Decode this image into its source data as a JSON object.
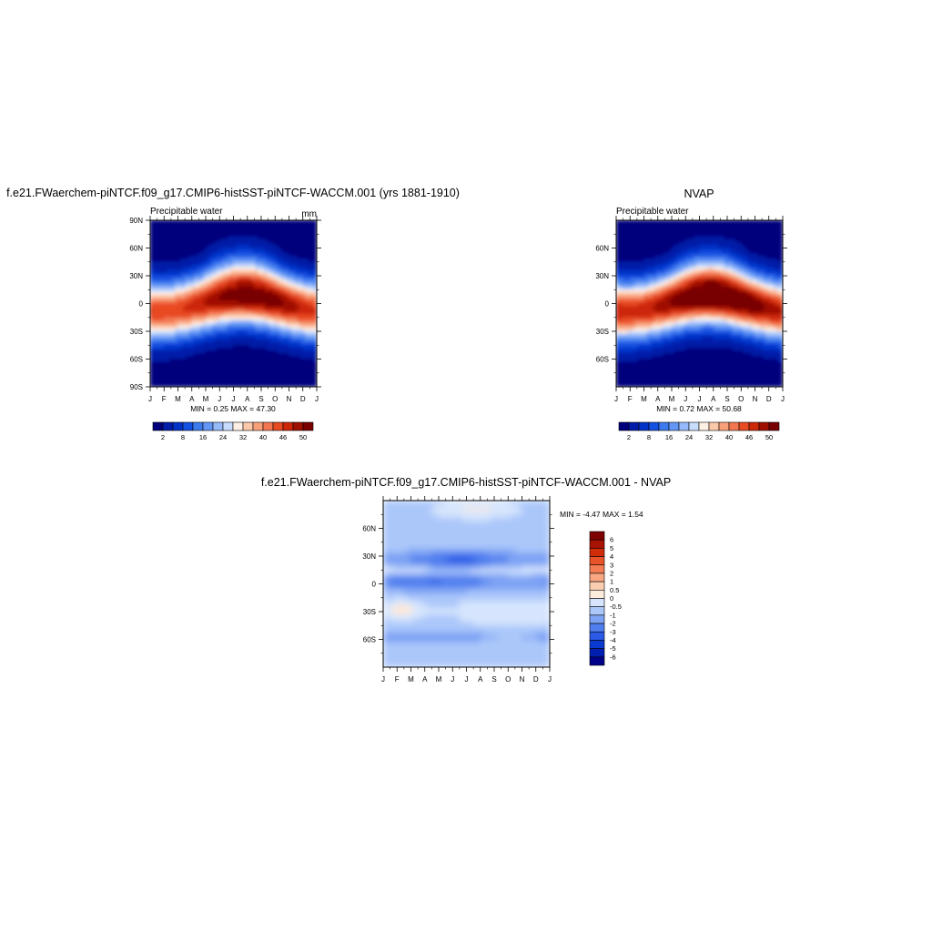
{
  "chart_data": [
    {
      "type": "heatmap",
      "title": "f.e21.FWaerchem-piNTCF.f09_g17.CMIP6-histSST-piNTCF-WACCM.001 (yrs 1881-1910)",
      "subtitle_left": "Precipitable water",
      "subtitle_right": "mm",
      "x_ticks": [
        "J",
        "F",
        "M",
        "A",
        "M",
        "J",
        "J",
        "A",
        "S",
        "O",
        "N",
        "D",
        "J"
      ],
      "y_ticks": [
        "90N",
        "60N",
        "30N",
        "0",
        "30S",
        "60S",
        "90S"
      ],
      "ylim": [
        -90,
        90
      ],
      "stats_text": "MIN =   0.25 MAX =  47.30",
      "min": 0.25,
      "max": 47.3,
      "colorbar_levels": [
        2,
        5,
        8,
        12,
        16,
        20,
        24,
        28,
        32,
        36,
        40,
        43,
        46,
        48,
        50
      ],
      "colorbar_labels": [
        "2",
        "8",
        "16",
        "24",
        "32",
        "40",
        "46",
        "50"
      ],
      "legend_position": "bottom"
    },
    {
      "type": "heatmap",
      "title": "NVAP",
      "subtitle_left": "Precipitable water",
      "x_ticks": [
        "J",
        "F",
        "M",
        "A",
        "M",
        "J",
        "J",
        "A",
        "S",
        "O",
        "N",
        "D",
        "J"
      ],
      "y_ticks": [
        "60N",
        "30N",
        "0",
        "30S",
        "60S"
      ],
      "ylim": [
        -90,
        90
      ],
      "stats_text": "MIN =   0.72 MAX =  50.68",
      "min": 0.72,
      "max": 50.68,
      "colorbar_levels": [
        2,
        5,
        8,
        12,
        16,
        20,
        24,
        28,
        32,
        36,
        40,
        43,
        46,
        48,
        50
      ],
      "colorbar_labels": [
        "2",
        "8",
        "16",
        "24",
        "32",
        "40",
        "46",
        "50"
      ],
      "legend_position": "bottom"
    },
    {
      "type": "heatmap",
      "title": "f.e21.FWaerchem-piNTCF.f09_g17.CMIP6-histSST-piNTCF-WACCM.001 - NVAP",
      "x_ticks": [
        "J",
        "F",
        "M",
        "A",
        "M",
        "J",
        "J",
        "A",
        "S",
        "O",
        "N",
        "D",
        "J"
      ],
      "y_ticks": [
        "60N",
        "30N",
        "0",
        "30S",
        "60S"
      ],
      "ylim": [
        -90,
        90
      ],
      "stats_text": "MIN =  -4.47 MAX =   1.54",
      "min": -4.47,
      "max": 1.54,
      "colorbar_labels": [
        "6",
        "5",
        "4",
        "3",
        "2",
        "1",
        "0.5",
        "0",
        "-0.5",
        "-1",
        "-2",
        "-3",
        "-4",
        "-5",
        "-6"
      ],
      "legend_position": "right"
    }
  ],
  "colors": {
    "abs_scale": [
      "#00007d",
      "#001ca8",
      "#0032c8",
      "#1450e1",
      "#3c7aee",
      "#6496f5",
      "#96b9f9",
      "#c8dcfd",
      "#fff0e6",
      "#fcc8aa",
      "#f8a07a",
      "#f2764f",
      "#e84a22",
      "#cc2808",
      "#a01000",
      "#780000"
    ],
    "diff_scale": [
      "#000088",
      "#001eb0",
      "#0a3ad0",
      "#2a5ae6",
      "#4f7eee",
      "#7ea3f4",
      "#abc7fa",
      "#d6e5fd",
      "#fdebdc",
      "#fbcdb0",
      "#f8a782",
      "#f37c55",
      "#e8532a",
      "#d02c0a",
      "#a81200",
      "#7e0000"
    ]
  }
}
